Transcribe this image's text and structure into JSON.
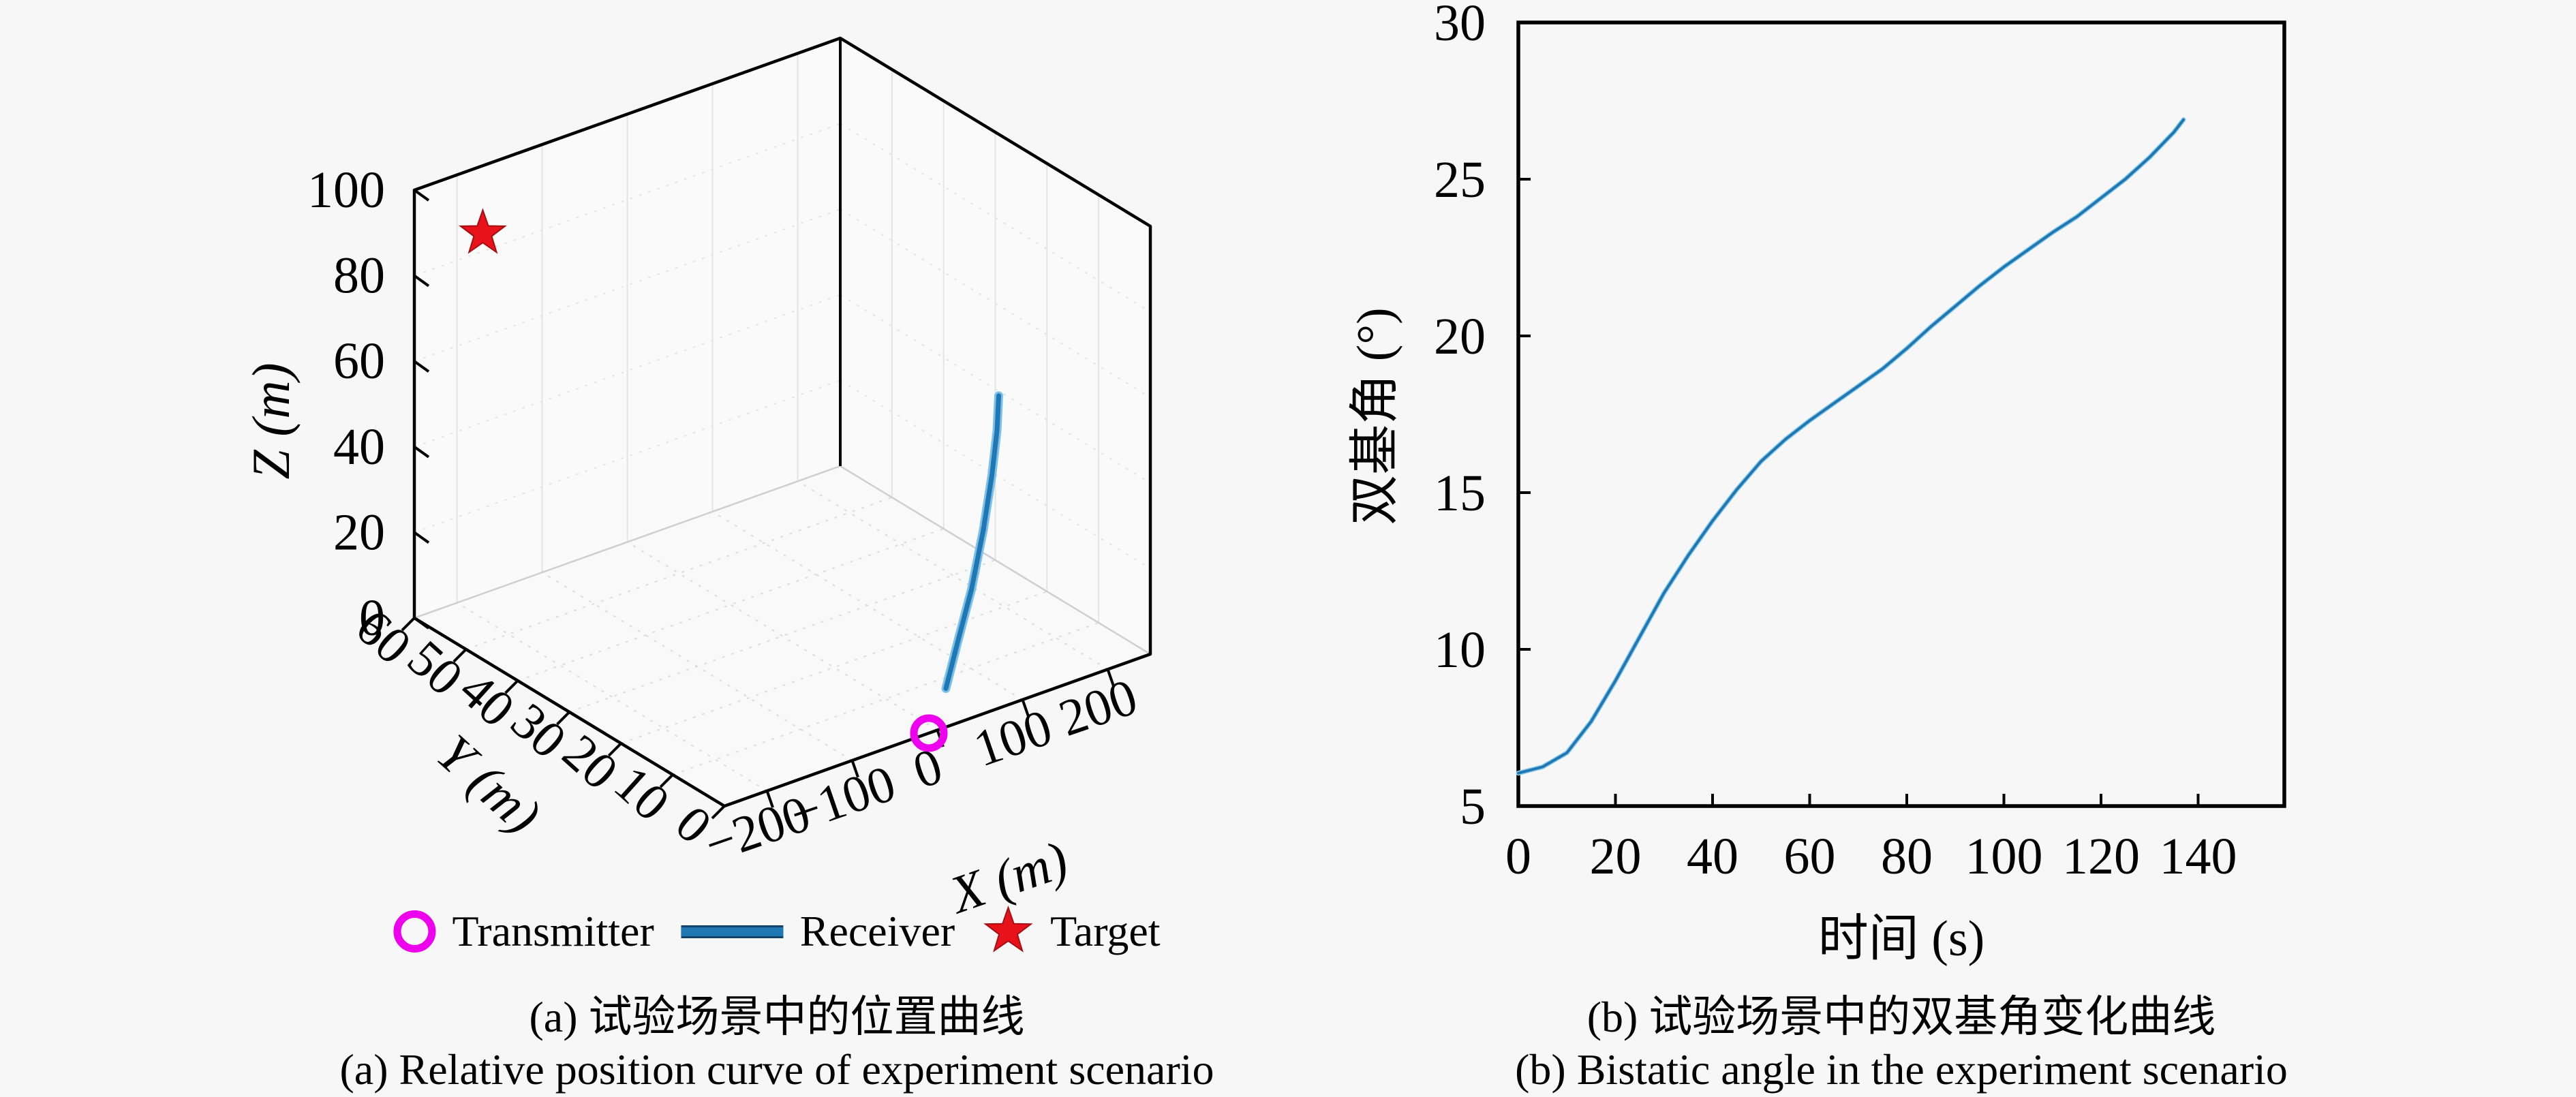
{
  "figure": {
    "background": "#f7f7f7",
    "text_color": "#000000"
  },
  "panel_a": {
    "caption_cn": "(a) 试验场景中的位置曲线",
    "caption_en": "(a) Relative position curve of experiment scenario",
    "legend": [
      {
        "label": "Transmitter",
        "marker": "open-circle",
        "color": "#ee00ee"
      },
      {
        "label": "Receiver",
        "marker": "line",
        "color": "#1f77b4"
      },
      {
        "label": "Target",
        "marker": "star",
        "color": "#e8131a"
      }
    ]
  },
  "panel_b": {
    "caption_cn": "(b) 试验场景中的双基角变化曲线",
    "caption_en": "(b) Bistatic angle in the experiment scenario"
  },
  "chart_data": [
    {
      "id": "relative-position-3d",
      "type": "line3d",
      "xlabel": "X (m)",
      "ylabel": "Y (m)",
      "zlabel": "Z (m)",
      "xlim": [
        -250,
        250
      ],
      "ylim": [
        0,
        60
      ],
      "zlim": [
        0,
        100
      ],
      "xticks": [
        -200,
        -100,
        0,
        100,
        200
      ],
      "yticks": [
        0,
        10,
        20,
        30,
        40,
        50,
        60
      ],
      "zticks": [
        0,
        20,
        40,
        60,
        80,
        100
      ],
      "grid": true,
      "series": [
        {
          "name": "Transmitter",
          "type": "scatter",
          "marker": "open-circle",
          "color": "#ee00ee",
          "points": [
            [
              -10,
              0,
              0
            ]
          ]
        },
        {
          "name": "Receiver",
          "type": "line",
          "marker": "none",
          "color": "#1f77b4",
          "points": [
            [
              10,
              0,
              9
            ],
            [
              24,
              0,
              19
            ],
            [
              40,
              0,
              30
            ],
            [
              54,
              0,
              43
            ],
            [
              64,
              0,
              55
            ],
            [
              70,
              0,
              65
            ],
            [
              72,
              0,
              73
            ]
          ]
        },
        {
          "name": "Target",
          "type": "scatter",
          "marker": "star",
          "color": "#e8131a",
          "points": [
            [
              -200,
              55,
              90
            ]
          ]
        }
      ]
    },
    {
      "id": "bistatic-angle",
      "type": "line",
      "xlabel": "时间 (s)",
      "ylabel": "双基角 (°)",
      "xlim": [
        0,
        158
      ],
      "ylim": [
        5,
        30
      ],
      "xticks": [
        0,
        20,
        40,
        60,
        80,
        100,
        120,
        140
      ],
      "yticks": [
        5,
        10,
        15,
        20,
        25,
        30
      ],
      "grid": false,
      "line_color": "#1f77b4",
      "x": [
        0,
        5,
        10,
        15,
        20,
        25,
        30,
        35,
        40,
        45,
        50,
        55,
        60,
        65,
        70,
        75,
        80,
        85,
        90,
        95,
        100,
        105,
        110,
        115,
        120,
        125,
        130,
        135,
        137
      ],
      "y": [
        6.05,
        6.25,
        6.7,
        7.7,
        9.0,
        10.4,
        11.8,
        13.0,
        14.1,
        15.1,
        16.0,
        16.7,
        17.3,
        17.85,
        18.4,
        18.95,
        19.6,
        20.3,
        20.95,
        21.6,
        22.2,
        22.75,
        23.3,
        23.8,
        24.4,
        25.0,
        25.7,
        26.5,
        26.9
      ]
    }
  ]
}
